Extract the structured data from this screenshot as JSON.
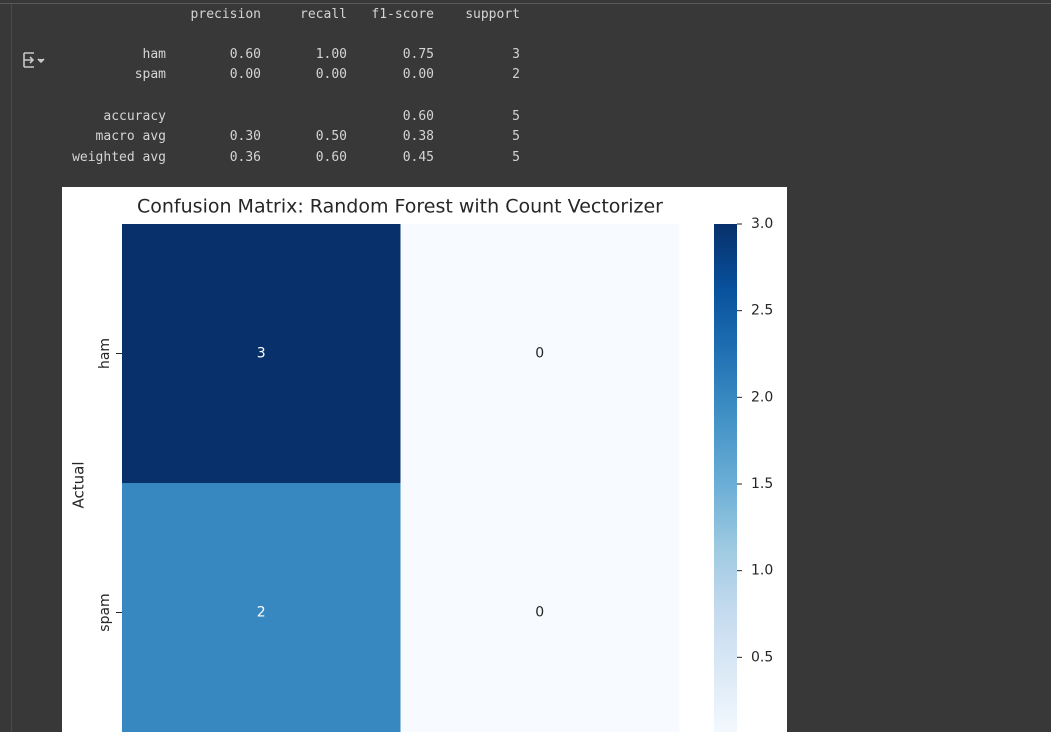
{
  "report": {
    "header": [
      "precision",
      "recall",
      "f1-score",
      "support"
    ],
    "rows": [
      {
        "label": "ham",
        "cells": [
          "0.60",
          "1.00",
          "0.75",
          "3"
        ]
      },
      {
        "label": "spam",
        "cells": [
          "0.00",
          "0.00",
          "0.00",
          "2"
        ]
      },
      {
        "label": "accuracy",
        "cells": [
          null,
          null,
          "0.60",
          "5"
        ]
      },
      {
        "label": "macro avg",
        "cells": [
          "0.30",
          "0.50",
          "0.38",
          "5"
        ]
      },
      {
        "label": "weighted avg",
        "cells": [
          "0.36",
          "0.60",
          "0.45",
          "5"
        ]
      }
    ]
  },
  "chart_data": {
    "type": "heatmap",
    "title": "Confusion Matrix: Random Forest with Count Vectorizer",
    "ylabel": "Actual",
    "row_categories": [
      "ham",
      "spam"
    ],
    "values": [
      [
        3,
        0
      ],
      [
        2,
        0
      ]
    ],
    "colors": [
      "#f7fbff",
      "#deebf7",
      "#c6dbef",
      "#9ecae1",
      "#6baed6",
      "#4292c6",
      "#2171b5",
      "#08519c",
      "#08306b"
    ],
    "clim": [
      0,
      3
    ],
    "cticks": [
      0.5,
      1,
      1.5,
      2,
      2.5,
      3
    ],
    "ctick_labels_fix": null
  }
}
